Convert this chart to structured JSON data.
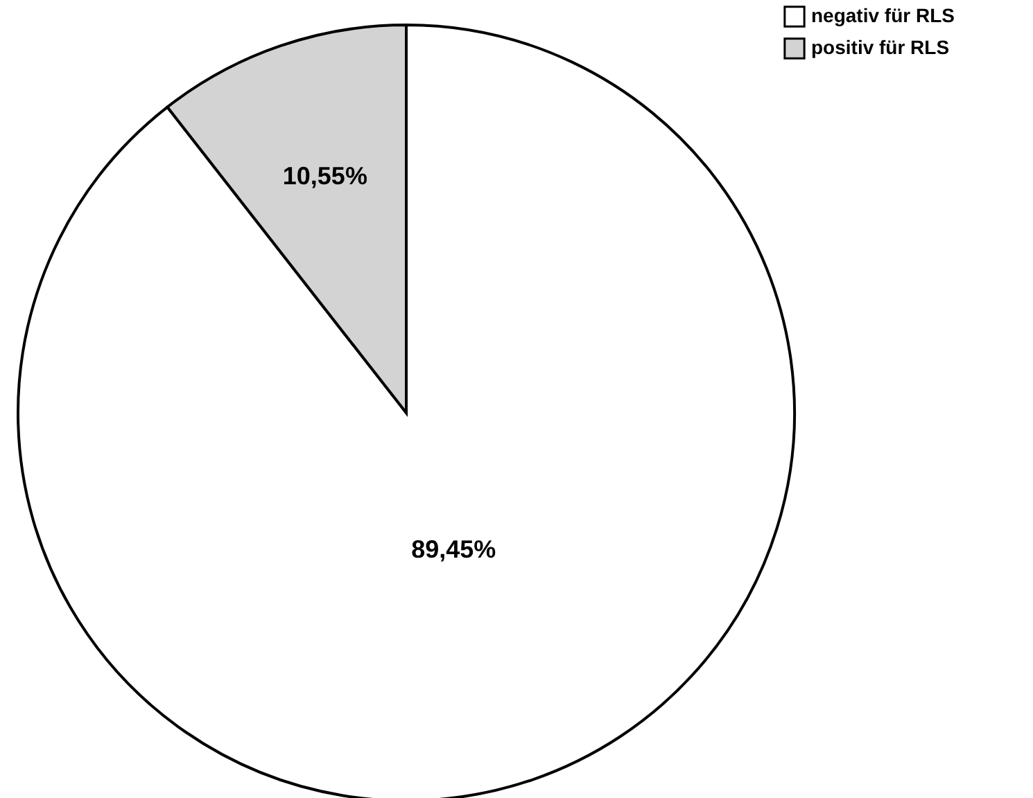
{
  "chart_data": {
    "type": "pie",
    "categories": [
      "negativ für RLS",
      "positiv für RLS"
    ],
    "values": [
      89.45,
      10.55
    ],
    "colors": [
      "#ffffff",
      "#d3d3d3"
    ],
    "value_labels": [
      "89,45%",
      "10,55%"
    ],
    "legend": "top right"
  }
}
